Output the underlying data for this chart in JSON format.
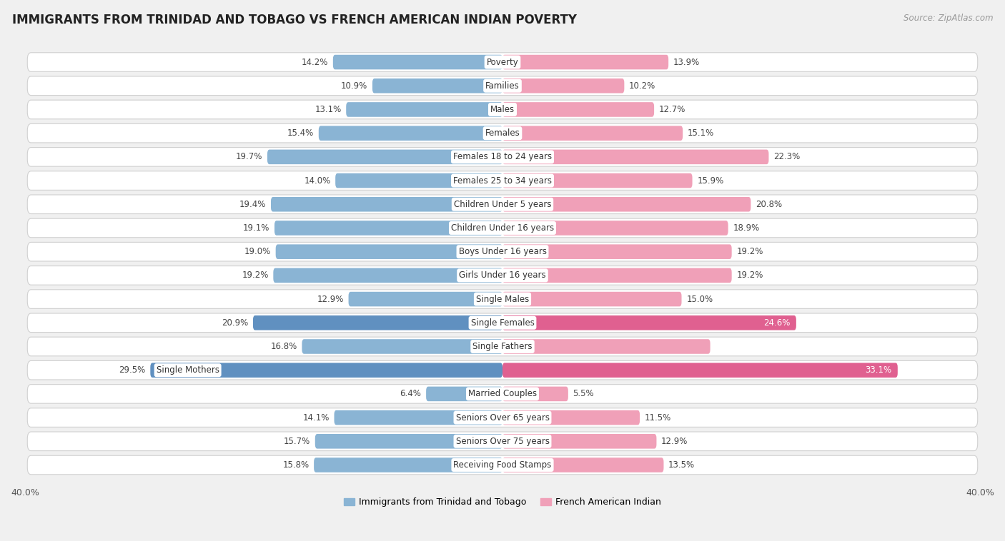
{
  "title": "IMMIGRANTS FROM TRINIDAD AND TOBAGO VS FRENCH AMERICAN INDIAN POVERTY",
  "source": "Source: ZipAtlas.com",
  "categories": [
    "Poverty",
    "Families",
    "Males",
    "Females",
    "Females 18 to 24 years",
    "Females 25 to 34 years",
    "Children Under 5 years",
    "Children Under 16 years",
    "Boys Under 16 years",
    "Girls Under 16 years",
    "Single Males",
    "Single Females",
    "Single Fathers",
    "Single Mothers",
    "Married Couples",
    "Seniors Over 65 years",
    "Seniors Over 75 years",
    "Receiving Food Stamps"
  ],
  "left_values": [
    14.2,
    10.9,
    13.1,
    15.4,
    19.7,
    14.0,
    19.4,
    19.1,
    19.0,
    19.2,
    12.9,
    20.9,
    16.8,
    29.5,
    6.4,
    14.1,
    15.7,
    15.8
  ],
  "right_values": [
    13.9,
    10.2,
    12.7,
    15.1,
    22.3,
    15.9,
    20.8,
    18.9,
    19.2,
    19.2,
    15.0,
    24.6,
    17.4,
    33.1,
    5.5,
    11.5,
    12.9,
    13.5
  ],
  "left_color": "#8ab4d4",
  "right_color": "#f0a0b8",
  "left_label": "Immigrants from Trinidad and Tobago",
  "right_label": "French American Indian",
  "axis_limit": 40.0,
  "background_color": "#f0f0f0",
  "row_bg_color": "#ffffff",
  "row_border_color": "#d0d0d0",
  "title_fontsize": 12,
  "source_fontsize": 8.5,
  "cat_fontsize": 8.5,
  "value_fontsize": 8.5,
  "highlighted_rows": [
    11,
    13
  ],
  "highlight_left_color": "#6090c0",
  "highlight_right_color": "#e06090"
}
